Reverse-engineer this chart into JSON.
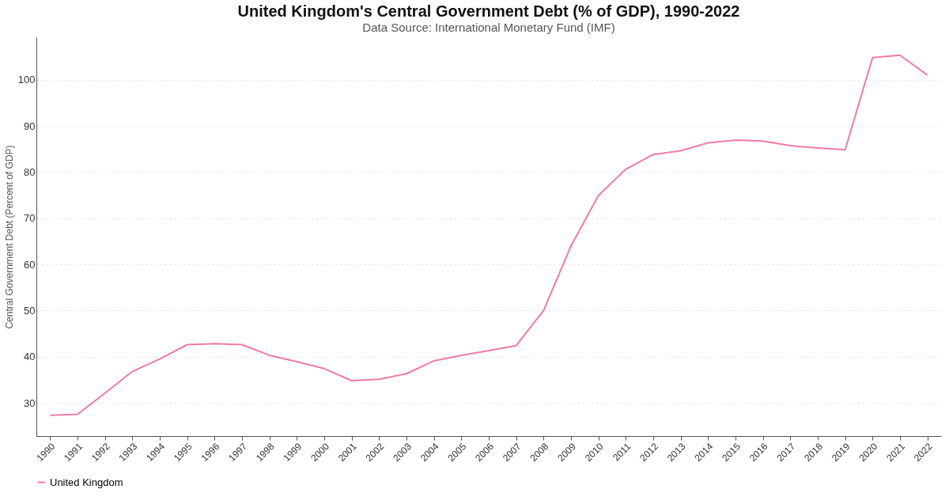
{
  "chart_data": {
    "type": "line",
    "title": "United Kingdom's Central Government Debt (% of GDP), 1990-2022",
    "subtitle": "Data Source: International Monetary Fund (IMF)",
    "ylabel": "Central Government Debt (Percent of GDP)",
    "categories": [
      "1990",
      "1991",
      "1992",
      "1993",
      "1994",
      "1995",
      "1996",
      "1997",
      "1998",
      "1999",
      "2000",
      "2001",
      "2002",
      "2003",
      "2004",
      "2005",
      "2006",
      "2007",
      "2008",
      "2009",
      "2010",
      "2011",
      "2012",
      "2013",
      "2014",
      "2015",
      "2016",
      "2017",
      "2018",
      "2019",
      "2020",
      "2021",
      "2022"
    ],
    "series": [
      {
        "name": "United Kingdom",
        "color": "#f07ba8",
        "values": [
          27.3,
          27.5,
          32.1,
          36.8,
          39.5,
          42.6,
          42.8,
          42.6,
          40.3,
          38.9,
          37.4,
          34.8,
          35.1,
          36.3,
          39.1,
          40.3,
          41.3,
          42.4,
          50.0,
          64.0,
          74.9,
          80.6,
          83.8,
          84.6,
          86.3,
          86.9,
          86.7,
          85.7,
          85.2,
          84.8,
          104.8,
          105.3,
          101.0
        ]
      }
    ],
    "ylim": [
      22.8,
      109.2
    ],
    "yticks": [
      30,
      40,
      50,
      60,
      70,
      80,
      90,
      100
    ],
    "grid": "y",
    "legend": "bottom",
    "line_style": "solid",
    "marker": "none"
  }
}
